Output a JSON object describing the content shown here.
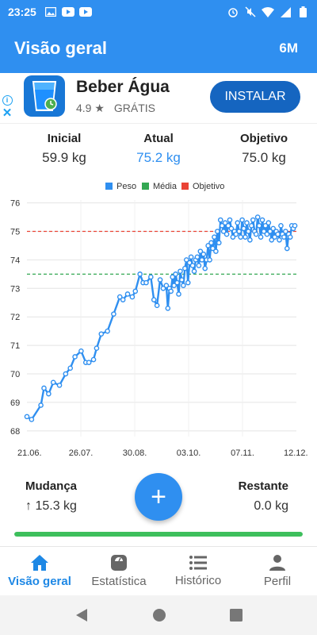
{
  "status_bar": {
    "time": "23:25",
    "notification_icons": [
      "image-icon",
      "youtube-icon",
      "youtube-icon"
    ],
    "system_icons": [
      "alarm-icon",
      "mute-icon",
      "wifi-icon",
      "signal-icon",
      "battery-icon"
    ]
  },
  "app_bar": {
    "title": "Visão geral",
    "range_label": "6M"
  },
  "ad": {
    "app_name": "Beber Água",
    "rating": "4.9 ★",
    "price": "GRÁTIS",
    "install_label": "INSTALAR",
    "info_glyph": "i",
    "close_glyph": "✕"
  },
  "stats": {
    "initial": {
      "label": "Inicial",
      "value": "59.9 kg"
    },
    "current": {
      "label": "Atual",
      "value": "75.2 kg"
    },
    "goal": {
      "label": "Objetivo",
      "value": "75.0 kg"
    }
  },
  "colors": {
    "primary": "#2f8ff0",
    "weight": "#2f8ff0",
    "average": "#34a853",
    "goal": "#ea4335",
    "progress": "#3dbf5c"
  },
  "chart_data": {
    "type": "line",
    "legend": [
      "Peso",
      "Média",
      "Objetivo"
    ],
    "x_ticks": [
      "21.06.",
      "26.07.",
      "30.08.",
      "03.10.",
      "07.11.",
      "12.12."
    ],
    "y_ticks": [
      68,
      69,
      70,
      71,
      72,
      73,
      74,
      75,
      76
    ],
    "ylim": [
      67.8,
      76.1
    ],
    "xlim": [
      0,
      174
    ],
    "grid": true,
    "legend_position": "top",
    "average_line": 73.5,
    "goal_line": 75.0,
    "series": [
      {
        "name": "Peso",
        "x": [
          0,
          3,
          9,
          11,
          14,
          17,
          21,
          25,
          28,
          31,
          35,
          38,
          40,
          43,
          45,
          48,
          52,
          56,
          60,
          62,
          65,
          68,
          70,
          73,
          75,
          77,
          80,
          82,
          84,
          86,
          88,
          90,
          91,
          92,
          93,
          94,
          95,
          96,
          97,
          98,
          99,
          100,
          101,
          102,
          103,
          104,
          105,
          106,
          107,
          108,
          109,
          110,
          111,
          112,
          113,
          114,
          115,
          116,
          117,
          118,
          119,
          120,
          121,
          122,
          123,
          124,
          125,
          126,
          127,
          128,
          129,
          130,
          131,
          132,
          133,
          134,
          135,
          136,
          137,
          138,
          139,
          140,
          141,
          142,
          143,
          144,
          145,
          146,
          147,
          148,
          149,
          150,
          151,
          152,
          153,
          154,
          155,
          156,
          157,
          158,
          159,
          160,
          161,
          162,
          163,
          164,
          165,
          166,
          167,
          168,
          169,
          170,
          171,
          172,
          173
        ],
        "values": [
          68.5,
          68.4,
          68.9,
          69.5,
          69.3,
          69.7,
          69.6,
          70.0,
          70.2,
          70.6,
          70.8,
          70.4,
          70.4,
          70.5,
          70.9,
          71.4,
          71.5,
          72.1,
          72.7,
          72.6,
          72.8,
          72.7,
          72.9,
          73.5,
          73.2,
          73.2,
          73.4,
          72.6,
          72.4,
          73.3,
          73.0,
          73.1,
          72.3,
          73.0,
          72.9,
          73.4,
          73.1,
          73.5,
          73.2,
          72.8,
          73.6,
          73.3,
          73.1,
          73.7,
          74.0,
          73.2,
          73.9,
          74.1,
          73.8,
          73.6,
          74.0,
          74.1,
          73.8,
          74.3,
          74.0,
          74.2,
          73.7,
          74.0,
          74.5,
          74.0,
          74.6,
          74.4,
          74.8,
          74.3,
          75.0,
          74.6,
          75.4,
          75.2,
          75.0,
          75.3,
          74.9,
          75.2,
          75.4,
          75.1,
          74.8,
          75.0,
          74.9,
          75.3,
          75.0,
          74.8,
          75.4,
          75.1,
          74.8,
          75.3,
          75.0,
          74.7,
          75.2,
          75.4,
          75.0,
          74.9,
          75.5,
          75.2,
          74.8,
          75.4,
          75.0,
          75.2,
          74.9,
          75.3,
          75.0,
          74.7,
          75.1,
          74.8,
          75.0,
          74.9,
          74.7,
          75.2,
          74.9,
          74.8,
          75.0,
          74.4,
          74.9,
          74.8,
          75.2,
          75.1,
          75.2
        ]
      }
    ]
  },
  "summary": {
    "change": {
      "label": "Mudança",
      "value": "↑ 15.3 kg"
    },
    "remaining": {
      "label": "Restante",
      "value": "0.0 kg"
    },
    "add_glyph": "+"
  },
  "progress": {
    "fraction": 1.0
  },
  "bottom_nav": {
    "items": [
      {
        "label": "Visão geral",
        "icon": "home-icon",
        "active": true
      },
      {
        "label": "Estatística",
        "icon": "scale-icon",
        "active": false
      },
      {
        "label": "Histórico",
        "icon": "list-icon",
        "active": false
      },
      {
        "label": "Perfil",
        "icon": "person-icon",
        "active": false
      }
    ]
  },
  "system_nav": [
    "back-icon",
    "home-circle-icon",
    "recents-icon"
  ]
}
